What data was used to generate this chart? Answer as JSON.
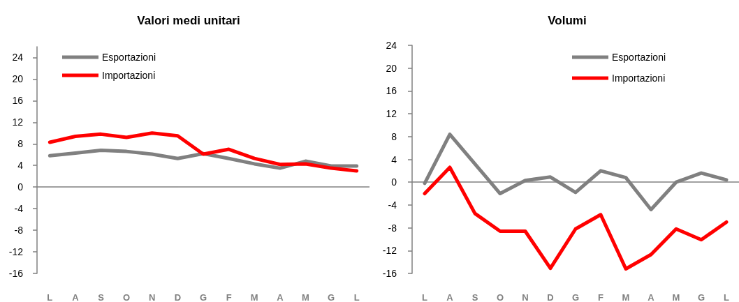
{
  "chart_data": [
    {
      "type": "line",
      "title": "Valori medi unitari",
      "categories": [
        "L",
        "A",
        "S",
        "O",
        "N",
        "D",
        "G",
        "F",
        "M",
        "A",
        "M",
        "G",
        "L"
      ],
      "series": [
        {
          "name": "Esportazioni",
          "color": "#808080",
          "values": [
            5.8,
            6.3,
            6.8,
            6.6,
            6.1,
            5.3,
            6.2,
            5.3,
            4.3,
            3.5,
            4.8,
            3.9,
            3.9
          ]
        },
        {
          "name": "Importazioni",
          "color": "#ff0000",
          "values": [
            8.3,
            9.4,
            9.8,
            9.2,
            10.0,
            9.5,
            6.1,
            7.0,
            5.3,
            4.2,
            4.3,
            3.5,
            3.0
          ]
        }
      ],
      "ylim": [
        -16,
        26
      ],
      "yticks": [
        -16,
        -12,
        -8,
        -4,
        0,
        4,
        8,
        12,
        16,
        20,
        24
      ],
      "legend": "top left",
      "marker": "none"
    },
    {
      "type": "line",
      "title": "Volumi",
      "categories": [
        "L",
        "A",
        "S",
        "O",
        "N",
        "D",
        "G",
        "F",
        "M",
        "A",
        "M",
        "G",
        "L"
      ],
      "series": [
        {
          "name": "Esportazioni",
          "color": "#808080",
          "values": [
            -0.2,
            8.4,
            3.2,
            -2.0,
            0.3,
            0.9,
            -1.8,
            2.0,
            0.8,
            -4.8,
            0.0,
            1.6,
            0.4
          ]
        },
        {
          "name": "Importazioni",
          "color": "#ff0000",
          "values": [
            -2.0,
            2.6,
            -5.5,
            -8.6,
            -8.6,
            -15.1,
            -8.2,
            -5.7,
            -15.2,
            -12.7,
            -8.2,
            -10.1,
            -7.0
          ]
        }
      ],
      "ylim": [
        -16,
        24
      ],
      "yticks": [
        -16,
        -12,
        -8,
        -4,
        0,
        4,
        8,
        12,
        16,
        20,
        24
      ],
      "legend": "top right",
      "marker": "none"
    }
  ]
}
